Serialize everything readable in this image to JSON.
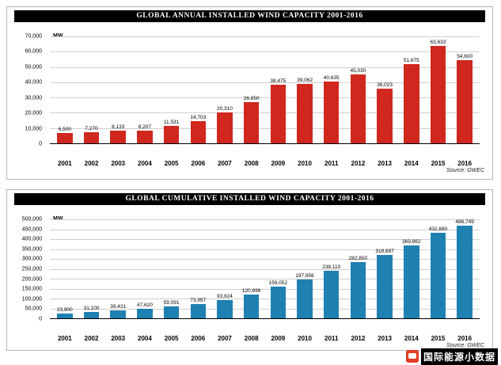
{
  "chart_data": [
    {
      "type": "bar",
      "title": "GLOBAL ANNUAL INSTALLED WIND CAPACITY 2001-2016",
      "unit": "MW",
      "source": "Source: GWEC",
      "bar_color": "#d0271e",
      "grid": true,
      "legend": "none",
      "ylim": [
        0,
        70000
      ],
      "ystep": 10000,
      "ytick_labels": [
        "0",
        "10,000",
        "20,000",
        "30,000",
        "40,000",
        "50,000",
        "60,000",
        "70,000"
      ],
      "categories": [
        "2001",
        "2002",
        "2003",
        "2004",
        "2005",
        "2006",
        "2007",
        "2008",
        "2009",
        "2010",
        "2011",
        "2012",
        "2013",
        "2014",
        "2015",
        "2016"
      ],
      "values": [
        6500,
        7270,
        8133,
        8207,
        11531,
        14703,
        20310,
        26850,
        38475,
        39062,
        40635,
        45030,
        36023,
        51675,
        63633,
        54600
      ],
      "value_labels": [
        "6,500",
        "7,270",
        "8,133",
        "8,207",
        "11,531",
        "14,703",
        "20,310",
        "26,850",
        "38,475",
        "39,062",
        "40,635",
        "45,030",
        "36,023",
        "51,675",
        "63,633",
        "54,600"
      ]
    },
    {
      "type": "bar",
      "title": "GLOBAL CUMULATIVE INSTALLED WIND CAPACITY 2001-2016",
      "unit": "MW",
      "source": "Source: GWEC",
      "bar_color": "#1f80b2",
      "grid": true,
      "legend": "none",
      "ylim": [
        0,
        500000
      ],
      "ystep": 50000,
      "ytick_labels": [
        "0",
        "50,000",
        "100,000",
        "150,000",
        "200,000",
        "250,000",
        "300,000",
        "350,000",
        "400,000",
        "450,000",
        "500,000"
      ],
      "categories": [
        "2001",
        "2002",
        "2003",
        "2004",
        "2005",
        "2006",
        "2007",
        "2008",
        "2009",
        "2010",
        "2011",
        "2012",
        "2013",
        "2014",
        "2015",
        "2016"
      ],
      "values": [
        23900,
        31100,
        39431,
        47620,
        59091,
        73957,
        93924,
        120696,
        159052,
        197956,
        238110,
        282850,
        318697,
        369862,
        432680,
        486749
      ],
      "value_labels": [
        "23,900",
        "31,100",
        "39,431",
        "47,620",
        "59,091",
        "73,957",
        "93,924",
        "120,696",
        "159,052",
        "197,956",
        "238,110",
        "282,850",
        "318,697",
        "369,862",
        "432,680",
        "486,749"
      ]
    }
  ],
  "watermark": {
    "text": "国际能源小数据"
  }
}
